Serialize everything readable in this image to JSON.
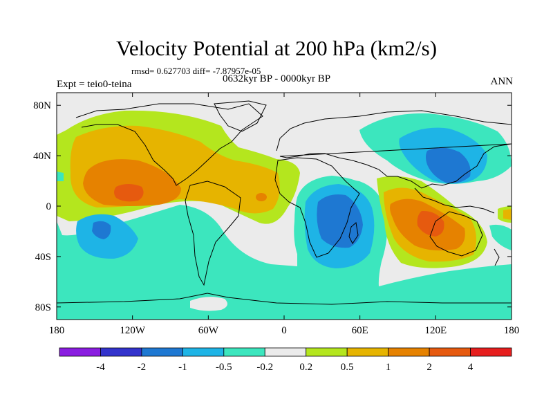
{
  "header": {
    "title": "Velocity Potential at 200 hPa (km2/s)",
    "stats": "rmsd= 0.627703 diff= -7.87957e-05",
    "period": "0632kyr BP - 0000kyr BP",
    "experiment": "Expt = teio0-teina",
    "season": "ANN"
  },
  "chart_data": {
    "type": "heatmap",
    "title": "Velocity Potential at 200 hPa (km2/s)",
    "subtitle": "0632kyr BP - 0000kyr BP",
    "rmsd": 0.627703,
    "diff": -7.87957e-05,
    "experiment": "teio0-teina",
    "season": "ANN",
    "x_axis": {
      "range": [
        -180,
        180
      ],
      "ticks": [
        -180,
        -120,
        -60,
        0,
        60,
        120,
        180
      ],
      "tick_labels": [
        "180",
        "120W",
        "60W",
        "0",
        "60E",
        "120E",
        "180"
      ]
    },
    "y_axis": {
      "range": [
        -90,
        90
      ],
      "ticks": [
        80,
        40,
        0,
        -40,
        -80
      ],
      "tick_labels": [
        "80N",
        "40N",
        "0",
        "40S",
        "80S"
      ]
    },
    "colorbar": {
      "labels": [
        "-4",
        "-2",
        "-1",
        "-0.5",
        "-0.2",
        "0.2",
        "0.5",
        "1",
        "2",
        "4"
      ],
      "colors": [
        "#8a1de0",
        "#3333cc",
        "#1e78d2",
        "#1eb4e6",
        "#3ce6be",
        "#ebebeb",
        "#b4e61e",
        "#e6b400",
        "#e68200",
        "#e65a0f",
        "#e61e1e"
      ]
    },
    "features": [
      {
        "name": "positive-max-east-pacific",
        "lon": -122,
        "lat": 12,
        "class": 9
      },
      {
        "name": "positive-max-maritime",
        "lon": 115,
        "lat": -20,
        "class": 9
      },
      {
        "name": "negative-min-indian-ocean",
        "lon": 52,
        "lat": -12,
        "class": 2
      },
      {
        "name": "negative-min-north-pacific",
        "lon": 130,
        "lat": 28,
        "class": 2
      },
      {
        "name": "negative-min-south-pacific",
        "lon": -145,
        "lat": -30,
        "class": 2
      }
    ]
  }
}
